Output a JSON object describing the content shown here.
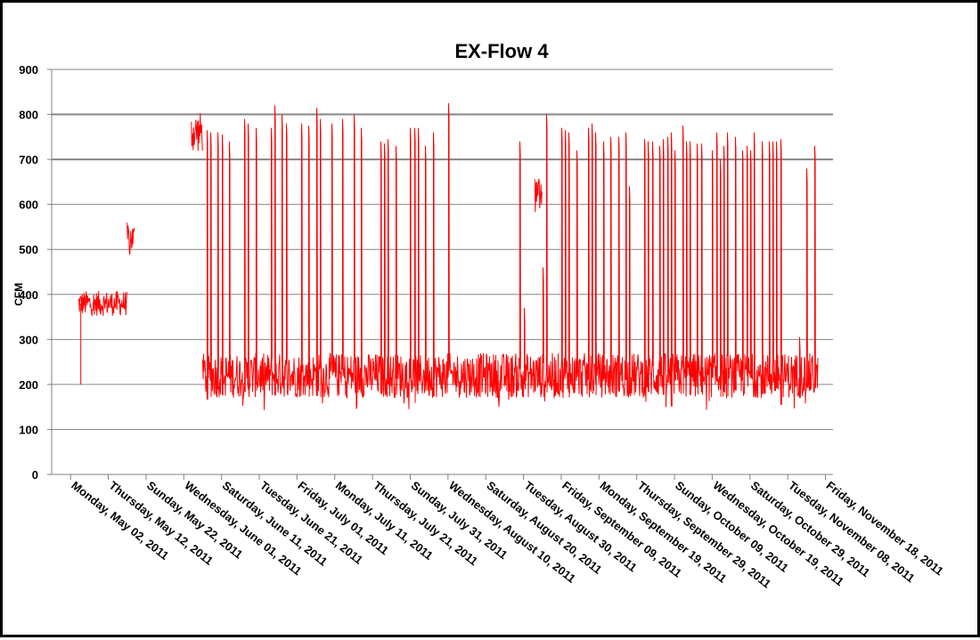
{
  "chart_data": {
    "type": "line",
    "title": "EX-Flow 4",
    "xlabel": "",
    "ylabel": "CFM",
    "ylim": [
      0,
      900
    ],
    "yticks": [
      "0",
      "100",
      "200",
      "300",
      "400",
      "500",
      "600",
      "700",
      "800",
      "900"
    ],
    "x_tick_labels": [
      "Monday, May 02, 2011",
      "Thursday, May 12, 2011",
      "Sunday, May 22, 2011",
      "Wednesday, June 01, 2011",
      "Saturday, June 11, 2011",
      "Tuesday, June 21, 2011",
      "Friday, July 01, 2011",
      "Monday, July 11, 2011",
      "Thursday, July 21, 2011",
      "Sunday, July 31, 2011",
      "Wednesday, August 10, 2011",
      "Saturday, August 20, 2011",
      "Tuesday, August 30, 2011",
      "Friday, September 09, 2011",
      "Monday, September 19, 2011",
      "Thursday, September 29, 2011",
      "Sunday, October 09, 2011",
      "Wednesday, October 19, 2011",
      "Saturday, October 29, 2011",
      "Tuesday, November 08, 2011",
      "Friday, November 18, 2011"
    ],
    "grid": "horizontal",
    "legend": "none",
    "series": [
      {
        "color": "#ff0000",
        "segments": [
          {
            "start": "2011-05-04",
            "end": "2011-05-17",
            "base": 380,
            "noise": 28,
            "spikes": []
          },
          {
            "start": "2011-05-17",
            "end": "2011-05-19",
            "base": 525,
            "noise": 35,
            "spikes": []
          },
          {
            "start": "2011-06-03",
            "end": "2011-06-06",
            "base": 760,
            "noise": 45,
            "spikes": []
          },
          {
            "start": "2011-06-06",
            "end": "2011-11-16",
            "base": 220,
            "noise": 50,
            "spikes": [
              {
                "date": "2011-06-07",
                "value": 765
              },
              {
                "date": "2011-06-08",
                "value": 760
              },
              {
                "date": "2011-06-10",
                "value": 760
              },
              {
                "date": "2011-06-11",
                "value": 755
              },
              {
                "date": "2011-06-13",
                "value": 740
              },
              {
                "date": "2011-06-17",
                "value": 790
              },
              {
                "date": "2011-06-18",
                "value": 780
              },
              {
                "date": "2011-06-20",
                "value": 770
              },
              {
                "date": "2011-06-24",
                "value": 770
              },
              {
                "date": "2011-06-25",
                "value": 820
              },
              {
                "date": "2011-06-27",
                "value": 800
              },
              {
                "date": "2011-06-28",
                "value": 780
              },
              {
                "date": "2011-07-02",
                "value": 780
              },
              {
                "date": "2011-07-04",
                "value": 775
              },
              {
                "date": "2011-07-06",
                "value": 815
              },
              {
                "date": "2011-07-07",
                "value": 790
              },
              {
                "date": "2011-07-10",
                "value": 780
              },
              {
                "date": "2011-07-13",
                "value": 790
              },
              {
                "date": "2011-07-16",
                "value": 800
              },
              {
                "date": "2011-07-18",
                "value": 770
              },
              {
                "date": "2011-07-23",
                "value": 740
              },
              {
                "date": "2011-07-24",
                "value": 735
              },
              {
                "date": "2011-07-25",
                "value": 745
              },
              {
                "date": "2011-07-27",
                "value": 730
              },
              {
                "date": "2011-07-31",
                "value": 770
              },
              {
                "date": "2011-08-01",
                "value": 770
              },
              {
                "date": "2011-08-02",
                "value": 770
              },
              {
                "date": "2011-08-04",
                "value": 730
              },
              {
                "date": "2011-08-06",
                "value": 760
              },
              {
                "date": "2011-08-10",
                "value": 825
              },
              {
                "date": "2011-08-29",
                "value": 740
              },
              {
                "date": "2011-08-30",
                "value": 370
              },
              {
                "date": "2011-09-04",
                "value": 460
              },
              {
                "date": "2011-09-05",
                "value": 800
              },
              {
                "date": "2011-09-09",
                "value": 770
              },
              {
                "date": "2011-09-10",
                "value": 765
              },
              {
                "date": "2011-09-11",
                "value": 760
              },
              {
                "date": "2011-09-13",
                "value": 720
              },
              {
                "date": "2011-09-16",
                "value": 770
              },
              {
                "date": "2011-09-17",
                "value": 780
              },
              {
                "date": "2011-09-18",
                "value": 760
              },
              {
                "date": "2011-09-20",
                "value": 740
              },
              {
                "date": "2011-09-22",
                "value": 750
              },
              {
                "date": "2011-09-24",
                "value": 750
              },
              {
                "date": "2011-09-26",
                "value": 760
              },
              {
                "date": "2011-09-27",
                "value": 640
              },
              {
                "date": "2011-10-01",
                "value": 745
              },
              {
                "date": "2011-10-02",
                "value": 740
              },
              {
                "date": "2011-10-03",
                "value": 740
              },
              {
                "date": "2011-10-05",
                "value": 730
              },
              {
                "date": "2011-10-06",
                "value": 745
              },
              {
                "date": "2011-10-07",
                "value": 750
              },
              {
                "date": "2011-10-08",
                "value": 760
              },
              {
                "date": "2011-10-09",
                "value": 720
              },
              {
                "date": "2011-10-11",
                "value": 775
              },
              {
                "date": "2011-10-12",
                "value": 740
              },
              {
                "date": "2011-10-13",
                "value": 740
              },
              {
                "date": "2011-10-15",
                "value": 735
              },
              {
                "date": "2011-10-16",
                "value": 735
              },
              {
                "date": "2011-10-19",
                "value": 720
              },
              {
                "date": "2011-10-20",
                "value": 760
              },
              {
                "date": "2011-10-21",
                "value": 700
              },
              {
                "date": "2011-10-22",
                "value": 730
              },
              {
                "date": "2011-10-23",
                "value": 760
              },
              {
                "date": "2011-10-25",
                "value": 750
              },
              {
                "date": "2011-10-27",
                "value": 720
              },
              {
                "date": "2011-10-28",
                "value": 730
              },
              {
                "date": "2011-10-29",
                "value": 720
              },
              {
                "date": "2011-10-30",
                "value": 760
              },
              {
                "date": "2011-11-01",
                "value": 740
              },
              {
                "date": "2011-11-03",
                "value": 740
              },
              {
                "date": "2011-11-04",
                "value": 740
              },
              {
                "date": "2011-11-05",
                "value": 740
              },
              {
                "date": "2011-11-06",
                "value": 745
              },
              {
                "date": "2011-11-11",
                "value": 305
              },
              {
                "date": "2011-11-13",
                "value": 680
              },
              {
                "date": "2011-11-15",
                "value": 730
              }
            ]
          },
          {
            "start": "2011-09-02",
            "end": "2011-09-04",
            "base": 620,
            "noise": 40,
            "spikes": []
          }
        ],
        "outliers": [
          {
            "date": "2011-05-04",
            "value": 200
          }
        ]
      }
    ]
  }
}
